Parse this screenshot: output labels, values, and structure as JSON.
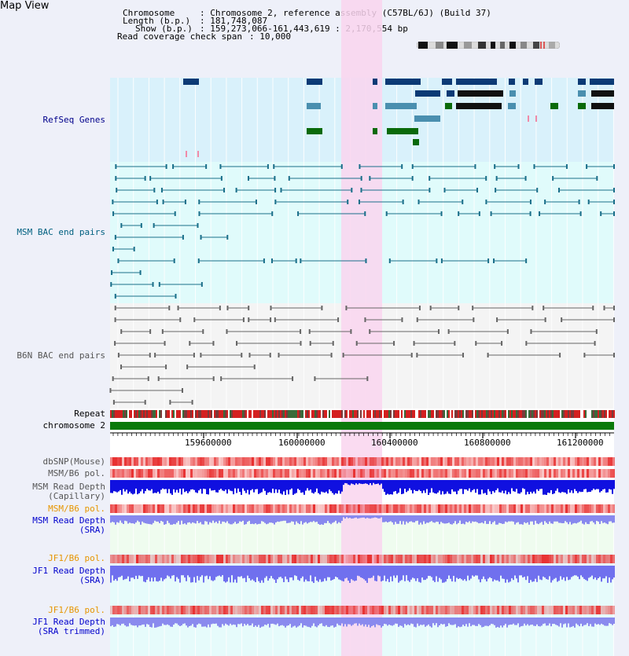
{
  "app": {
    "title": "Map View"
  },
  "info": {
    "chromosome_key": "Chromosome",
    "chromosome_val": ": Chromosome 2, reference assembly (C57BL/6J) (Build 37)",
    "length_key": "Length (b.p.)",
    "length_val": ": 181,748,087",
    "show_key": "Show (b.p.)",
    "show_val": ": 159,273,066-161,443,619 : 2,170,554 bp",
    "coverage_key": "Read coverage check span",
    "coverage_val": ": 10,000"
  },
  "tracks": {
    "refseq": "RefSeq Genes",
    "msm_bac": "MSM BAC end pairs",
    "b6n_bac": "B6N BAC end pairs",
    "repeat": "Repeat",
    "chromosome": "chromosome 2",
    "dbsnp": "dbSNP(Mouse)",
    "msm_b6_pol_1": "MSM/B6 pol.",
    "msm_depth_cap_1": "MSM Read Depth",
    "msm_depth_cap_2": "(Capillary)",
    "msm_b6_pol_2": "MSM/B6 pol.",
    "msm_depth_sra_1": "MSM Read Depth",
    "msm_depth_sra_2": "(SRA)",
    "jf1_b6_pol_1": "JF1/B6 pol.",
    "jf1_depth_sra_1": "JF1 Read Depth",
    "jf1_depth_sra_2": "(SRA)",
    "jf1_b6_pol_2": "JF1/B6 pol.",
    "jf1_depth_trim_1": "JF1 Read Depth",
    "jf1_depth_trim_2": "(SRA trimmed)"
  },
  "axis": {
    "ticks": [
      "159600000",
      "160000000",
      "160400000",
      "160800000",
      "161200000"
    ]
  },
  "colors": {
    "refseq_label": "#00008b",
    "msm_label": "#006080",
    "b6n_label": "#555555",
    "orange_label": "#e69500",
    "blue_label": "#0000cc",
    "highlight": "#f9d5ef",
    "chromosome_bar": "#0a7a0a"
  }
}
